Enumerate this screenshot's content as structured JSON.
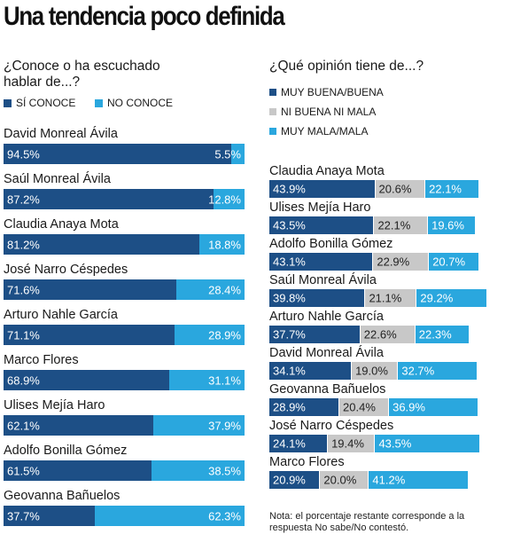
{
  "title": "Una tendencia poco definida",
  "left": {
    "subtitle_line1": "¿Conoce o ha escuchado",
    "subtitle_line2": "hablar de...?",
    "legend": [
      {
        "label": "SÍ CONOCE",
        "color": "#1d4f86"
      },
      {
        "label": "NO CONOCE",
        "color": "#2aa7de"
      }
    ]
  },
  "right": {
    "subtitle": "¿Qué opinión tiene de...?",
    "legend": [
      {
        "label": "MUY BUENA/BUENA",
        "color": "#1d4f86"
      },
      {
        "label": "NI BUENA NI MALA",
        "color": "#c8c8c8"
      },
      {
        "label": "MUY MALA/MALA",
        "color": "#2aa7de"
      }
    ]
  },
  "note": "Nota: el porcentaje restante corresponde a la respuesta No sabe/No contestó.",
  "chart_data": [
    {
      "type": "bar",
      "title": "¿Conoce o ha escuchado hablar de...?",
      "orientation": "horizontal",
      "stacked": true,
      "categories": [
        "David Monreal Ávila",
        "Saúl Monreal Ávila",
        "Claudia Anaya Mota",
        "José Narro Céspedes",
        "Arturo Nahle García",
        "Marco Flores",
        "Ulises Mejía Haro",
        "Adolfo Bonilla Gómez",
        "Geovanna Bañuelos"
      ],
      "series": [
        {
          "name": "SÍ CONOCE",
          "color": "#1d4f86",
          "values": [
            94.5,
            87.2,
            81.2,
            71.6,
            71.1,
            68.9,
            62.1,
            61.5,
            37.7
          ]
        },
        {
          "name": "NO CONOCE",
          "color": "#2aa7de",
          "values": [
            5.5,
            12.8,
            18.8,
            28.4,
            28.9,
            31.1,
            37.9,
            38.5,
            62.3
          ]
        }
      ]
    },
    {
      "type": "bar",
      "title": "¿Qué opinión tiene de...?",
      "orientation": "horizontal",
      "stacked": true,
      "categories": [
        "Claudia Anaya Mota",
        "Ulises Mejía Haro",
        "Adolfo Bonilla Gómez",
        "Saúl Monreal Ávila",
        "Arturo Nahle García",
        "David Monreal Ávila",
        "Geovanna Bañuelos",
        "José Narro Céspedes",
        "Marco Flores"
      ],
      "series": [
        {
          "name": "MUY BUENA/BUENA",
          "color": "#1d4f86",
          "values": [
            43.9,
            43.5,
            43.1,
            39.8,
            37.7,
            34.1,
            28.9,
            24.1,
            20.9
          ]
        },
        {
          "name": "NI BUENA NI MALA",
          "color": "#c8c8c8",
          "values": [
            20.6,
            22.1,
            22.9,
            21.1,
            22.6,
            19.0,
            20.4,
            19.4,
            20.0
          ]
        },
        {
          "name": "MUY MALA/MALA",
          "color": "#2aa7de",
          "values": [
            22.1,
            19.6,
            20.7,
            29.2,
            22.3,
            32.7,
            36.9,
            43.5,
            41.2
          ]
        }
      ]
    }
  ]
}
